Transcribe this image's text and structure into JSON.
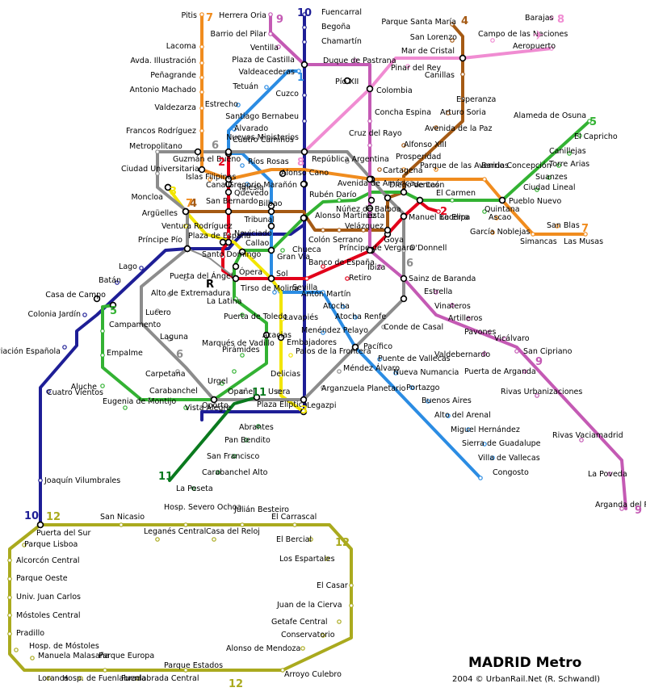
{
  "title": "MADRID Metro",
  "credit": "2004 © UrbanRail.Net (R. Schwandl)",
  "colors": {
    "l1": "#2b8ce3",
    "l2": "#e2001a",
    "l3": "#f2e500",
    "l4": "#a55a14",
    "l5": "#33b233",
    "l6": "#8c8c8c",
    "l7": "#f08c1e",
    "l8": "#f08cd2",
    "l9": "#c45ab4",
    "l10": "#1e1e96",
    "l11": "#0a7a1e",
    "l12": "#aaaa1e",
    "ramal": "#8c8c8c"
  },
  "line_numbers": {
    "l1": "1",
    "l2": "2",
    "l3": "3",
    "l4": "4",
    "l5": "5",
    "l6": "6",
    "l7": "7",
    "l8": "8",
    "l9": "9",
    "l10": "10",
    "l11": "11",
    "l12": "12",
    "ramal": "R"
  },
  "stations": {
    "l10": [
      "Fuencarral",
      "Begoña",
      "Chamartín",
      "Plaza de Castilla",
      "Cuzco",
      "Santiago Bernabeu",
      "Nuevos Ministerios",
      "Gregorio Marañón",
      "Alonso Martínez",
      "Tribunal",
      "Plaza de España",
      "Príncipe Pío",
      "Lago",
      "Batán",
      "Casa de Campo",
      "Colonia Jardín",
      "Aviación Española",
      "Cuatro Vientos",
      "Joaquín Vilumbrales",
      "Puerta del Sur"
    ],
    "l1": [
      "Valdeacederas",
      "Tetuán",
      "Estrecho",
      "Alvarado",
      "Cuatro Caminos",
      "Ríos Rosas",
      "Iglesia",
      "Bilbao",
      "Tribunal",
      "Gran Vía",
      "Sol",
      "Tirso de Molina",
      "Antón Martín",
      "Atocha",
      "Atocha Renfe",
      "Menéndez Pelayo",
      "Pacífico",
      "Puente de Vallecas",
      "Nueva Numancia",
      "Portazgo",
      "Buenos Aires",
      "Alto del Arenal",
      "Miguel Hernández",
      "Sierra de Guadalupe",
      "Villa de Vallecas",
      "Congosto"
    ],
    "l2": [
      "Cuatro Caminos",
      "Canal",
      "Quevedo",
      "San Bernardo",
      "Noviciado",
      "Santo Domingo",
      "Ópera",
      "Sol",
      "Sevilla",
      "Banco de España",
      "Retiro",
      "Príncipe de Vergara",
      "Goya",
      "Manuel Becerra",
      "Ventas",
      "La Elipa"
    ],
    "l3": [
      "Moncloa",
      "Argüelles",
      "Ventura Rodríguez",
      "Plaza de España",
      "Callao",
      "Sol",
      "Lavapiés",
      "Embajadores",
      "Palos de la Frontera",
      "Delicias",
      "Legazpi"
    ],
    "l4": [
      "Argüelles",
      "San Bernardo",
      "Bilbao",
      "Alonso Martínez",
      "Colón",
      "Serrano",
      "Velázquez",
      "Goya",
      "Lista",
      "Diego de León",
      "Avenida de América",
      "Prosperidad",
      "Alfonso XIII",
      "Avenida de la Paz",
      "Arturo Soria",
      "Esperanza",
      "Canillas",
      "Mar de Cristal",
      "San Lorenzo",
      "Parque Santa María"
    ],
    "l5": [
      "Alameda de Osuna",
      "El Capricho",
      "Canillejas",
      "Torre Arias",
      "Suanzes",
      "Ciudad Lineal",
      "Pueblo Nuevo",
      "Quintana",
      "El Carmen",
      "Ventas",
      "Diego de León",
      "Núñez de Balboa",
      "Rubén Darío",
      "Alonso Martínez",
      "Chueca",
      "Gran Vía",
      "Callao",
      "Ópera",
      "La Latina",
      "Puerta de Toledo",
      "Acacias",
      "Pirámides",
      "Marqués de Vadillo",
      "Urgel",
      "Oporto",
      "Vista Alegre",
      "Carabanchel",
      "Eugenia de Montijo",
      "Aluche",
      "Empalme",
      "Campamento",
      "Casa de Campo"
    ],
    "l6": [
      "Metropolitano",
      "Ciudad Universitaria",
      "Moncloa",
      "Argüelles",
      "Príncipe Pío",
      "Puerta del Ángel",
      "Alto de Extremadura",
      "Lucero",
      "Laguna",
      "Carpetana",
      "Oporto",
      "Opañel",
      "Usera",
      "Legazpi",
      "Arganzuela Planetario",
      "Méndez Álvaro",
      "Pacífico",
      "Conde de Casal",
      "Sainz de Baranda",
      "O'Donnell",
      "Manuel Becerra",
      "Diego de León",
      "Avenida de América",
      "República Argentina",
      "Nuevos Ministerios",
      "Cuatro Caminos",
      "Guzmán el Bueno"
    ],
    "l7": [
      "Pitis",
      "Lacoma",
      "Avda. Illustración",
      "Peñagrande",
      "Antonio Machado",
      "Valdezarza",
      "Francos Rodríguez",
      "Guzmán el Bueno",
      "Islas Filipinas",
      "Canal",
      "Alonso Cano",
      "Gregorio Marañón",
      "Avenida de América",
      "Cartagena",
      "Parque de las Avenidas",
      "Barrio Concepción",
      "Pueblo Nuevo",
      "Ascao",
      "García Noblejas",
      "Simancas",
      "San Blas",
      "Las Musas"
    ],
    "l8": [
      "Nuevos Ministerios",
      "Colombia",
      "Pinar del Rey",
      "Mar de Cristal",
      "Campo de las Naciones",
      "Aeropuerto",
      "Barajas"
    ],
    "l9": [
      "Herrera Oria",
      "Barrio del Pilar",
      "Ventilla",
      "Plaza de Castilla",
      "Duque de Pastrana",
      "Pío XII",
      "Colombia",
      "Concha Espina",
      "Cruz del Rayo",
      "Avenida de América",
      "Núñez de Balboa",
      "Príncipe de Vergara",
      "Ibiza",
      "Sainz de Baranda",
      "Estrella",
      "Vinateros",
      "Artilleros",
      "Pavones",
      "Valdebernardo",
      "Vicálvaro",
      "San Cipriano",
      "Puerta de Arganda",
      "Rivas Urbanizaciones",
      "Rivas Vaciamadrid",
      "La Poveda",
      "Arganda del Rey"
    ],
    "l11": [
      "Plaza Elíptica",
      "Abrantes",
      "Pan Bendito",
      "San Francisco",
      "Carabanchel Alto",
      "La Peseta"
    ],
    "l12": [
      "Puerta del Sur",
      "San Nicasio",
      "Hosp. Severo Ochoa",
      "Julián Besteiro",
      "El Carrascal",
      "Leganés Central",
      "Casa del Reloj",
      "El Bercial",
      "Los Espartales",
      "El Casar",
      "Juan de la Cierva",
      "Getafe Central",
      "Conservatorio",
      "Alonso de Mendoza",
      "Arroyo Culebro",
      "Parque Estados",
      "Fuenlabrada Central",
      "Parque Europa",
      "Hosp. de Fuenlabrada",
      "Loranca",
      "Manuela Malasaña",
      "Hosp. de Móstoles",
      "Pradillo",
      "Móstoles Central",
      "Univ. Juan Carlos",
      "Parque Oeste",
      "Alcorcón Central",
      "Parque Lisboa"
    ],
    "ramal": [
      "Ópera",
      "Príncipe Pío"
    ]
  }
}
